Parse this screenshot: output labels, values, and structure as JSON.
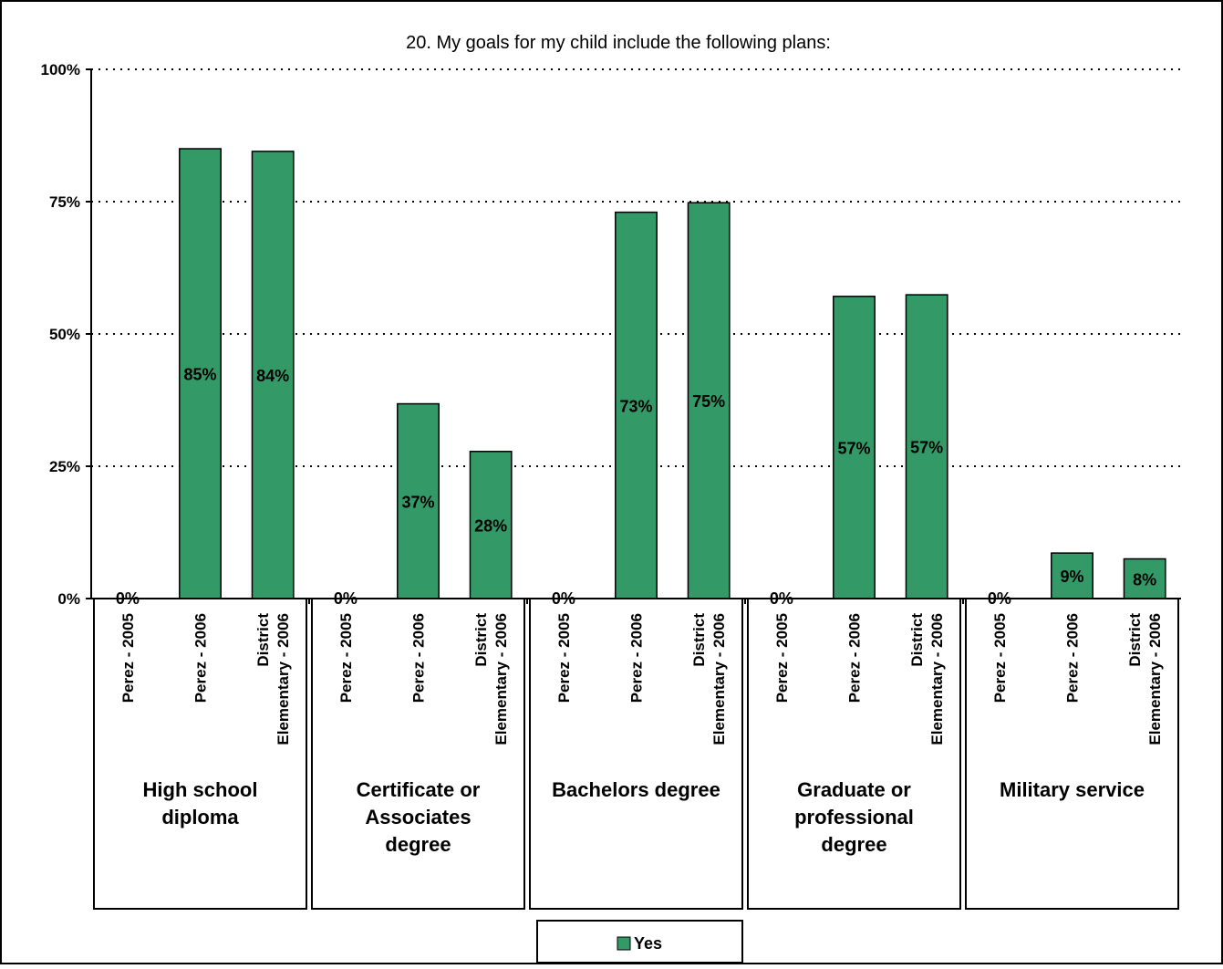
{
  "chart_data": {
    "type": "bar",
    "title": "20.  My goals for my child include the following plans:",
    "xlabel": "",
    "ylabel": "",
    "ylim": [
      0,
      1
    ],
    "y_ticks": [
      "0%",
      "25%",
      "50%",
      "75%",
      "100%"
    ],
    "grid": true,
    "groups": [
      {
        "label": "High school diploma",
        "bars": [
          {
            "category": "Perez - 2005",
            "value": 0,
            "label": "0%"
          },
          {
            "category": "Perez - 2006",
            "value": 0.85,
            "label": "85%"
          },
          {
            "category": "District Elementary - 2006",
            "value": 0.845,
            "label": "84%"
          }
        ]
      },
      {
        "label": "Certificate or Associates degree",
        "bars": [
          {
            "category": "Perez - 2005",
            "value": 0,
            "label": "0%"
          },
          {
            "category": "Perez - 2006",
            "value": 0.368,
            "label": "37%"
          },
          {
            "category": "District Elementary - 2006",
            "value": 0.278,
            "label": "28%"
          }
        ]
      },
      {
        "label": "Bachelors degree",
        "bars": [
          {
            "category": "Perez - 2005",
            "value": 0,
            "label": "0%"
          },
          {
            "category": "Perez - 2006",
            "value": 0.73,
            "label": "73%"
          },
          {
            "category": "District Elementary - 2006",
            "value": 0.748,
            "label": "75%"
          }
        ]
      },
      {
        "label": "Graduate or professional degree",
        "bars": [
          {
            "category": "Perez - 2005",
            "value": 0,
            "label": "0%"
          },
          {
            "category": "Perez - 2006",
            "value": 0.571,
            "label": "57%"
          },
          {
            "category": "District Elementary - 2006",
            "value": 0.574,
            "label": "57%"
          }
        ]
      },
      {
        "label": "Military service",
        "bars": [
          {
            "category": "Perez - 2005",
            "value": 0,
            "label": "0%"
          },
          {
            "category": "Perez - 2006",
            "value": 0.086,
            "label": "9%"
          },
          {
            "category": "District Elementary - 2006",
            "value": 0.075,
            "label": "8%"
          }
        ]
      }
    ],
    "series": [
      {
        "name": "Yes",
        "color": "#339966"
      }
    ],
    "legend": {
      "position": "bottom",
      "items": [
        "Yes"
      ]
    }
  }
}
